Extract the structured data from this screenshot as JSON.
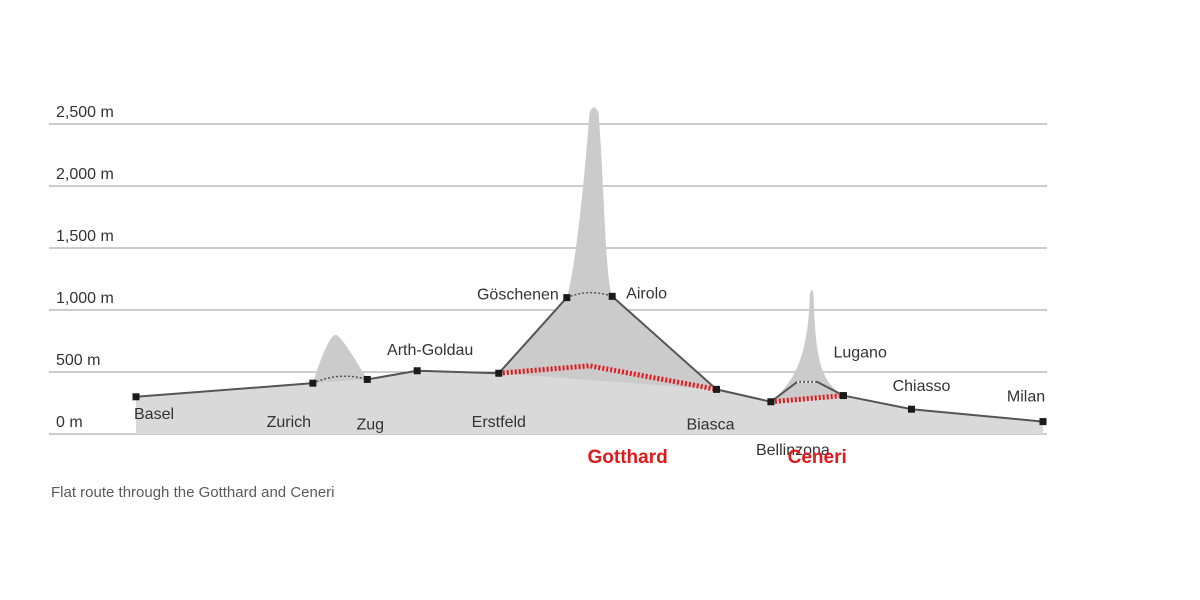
{
  "caption": "Flat route through the Gotthard and Ceneri",
  "colors": {
    "terrain": "#d9d9d9",
    "mountain": "#cbcbcb",
    "route_line": "#555555",
    "station_marker": "#1a1a1a",
    "grid": "#9a9a9a",
    "tunnel": "#e1191e",
    "text": "#333333"
  },
  "chart_data": {
    "type": "area",
    "ylim": [
      0,
      2500
    ],
    "y_ticks": [
      {
        "value": 0,
        "label": "0 m"
      },
      {
        "value": 500,
        "label": "500 m"
      },
      {
        "value": 1000,
        "label": "1,000 m"
      },
      {
        "value": 1500,
        "label": "1,500 m"
      },
      {
        "value": 2000,
        "label": "2,000 m"
      },
      {
        "value": 2500,
        "label": "2,500 m"
      }
    ],
    "grid": true,
    "stations": [
      {
        "name": "Basel",
        "x": 0,
        "elevation": 300
      },
      {
        "name": "Zurich",
        "x": 19.5,
        "elevation": 410
      },
      {
        "name": "Zug",
        "x": 25.5,
        "elevation": 440
      },
      {
        "name": "Arth-Goldau",
        "x": 31,
        "elevation": 510
      },
      {
        "name": "Erstfeld",
        "x": 40,
        "elevation": 490
      },
      {
        "name": "Göschenen",
        "x": 47.5,
        "elevation": 1100
      },
      {
        "name": "Airolo",
        "x": 52.5,
        "elevation": 1110
      },
      {
        "name": "Biasca",
        "x": 64,
        "elevation": 360
      },
      {
        "name": "Bellinzona",
        "x": 70,
        "elevation": 260
      },
      {
        "name": "Lugano",
        "x": 78,
        "elevation": 310
      },
      {
        "name": "Chiasso",
        "x": 85.5,
        "elevation": 200
      },
      {
        "name": "Milan",
        "x": 100,
        "elevation": 100
      }
    ],
    "tunnels": [
      {
        "name": "Gotthard",
        "path": [
          [
            40,
            490
          ],
          [
            50,
            550
          ],
          [
            64,
            360
          ]
        ]
      },
      {
        "name": "Ceneri",
        "path": [
          [
            70,
            260
          ],
          [
            78,
            310
          ]
        ]
      }
    ],
    "peaks": [
      {
        "x": 22,
        "elevation": 800
      },
      {
        "x": 50.5,
        "elevation": 2650
      },
      {
        "x": 74.5,
        "elevation": 1170
      }
    ]
  }
}
